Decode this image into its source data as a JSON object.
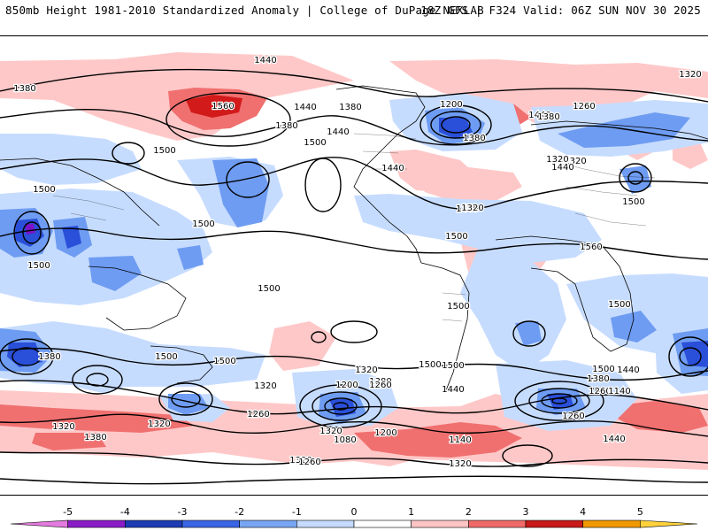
{
  "header": {
    "left": "850mb Height 1981-2010 Standardized Anomaly | College of DuPage NEXLAB",
    "right": "18Z GFS | F324 Valid: 06Z SUN NOV 30 2025"
  },
  "colors": {
    "ocean_bg": "#ffffff",
    "anom_pos1": "#ffc8c8",
    "anom_pos2": "#f07070",
    "anom_pos3": "#d21a1a",
    "anom_pos4": "#a00000",
    "anom_neg1": "#c6dcff",
    "anom_neg2": "#6e9cf2",
    "anom_neg3": "#2a4fd8",
    "anom_neg4": "#7a12c8",
    "contour": "#000000",
    "border": "#000000"
  },
  "contour_labels": [
    "1440",
    "1380",
    "1320",
    "1560",
    "1440",
    "1380",
    "1440",
    "1500",
    "1500",
    "1440",
    "1380",
    "1320",
    "1200",
    "1380",
    "1440",
    "1260",
    "1380",
    "1320",
    "1440",
    "1500",
    "1440",
    "1320",
    "1500",
    "1560",
    "1500",
    "1500",
    "1500",
    "1500",
    "1500",
    "1500",
    "1500",
    "1500",
    "1500",
    "1380",
    "1320",
    "1440",
    "1500",
    "1380",
    "1260",
    "1200",
    "1260",
    "1320",
    "1440",
    "1380",
    "1320",
    "1260",
    "1140",
    "1260",
    "1320",
    "1080",
    "1200",
    "1140",
    "1320",
    "1260",
    "1320",
    "1440",
    "1380",
    "1320",
    "1500"
  ],
  "colorbar": {
    "ticks": [
      "-5",
      "-4",
      "-3",
      "-2",
      "-1",
      "0",
      "1",
      "2",
      "3",
      "4",
      "5"
    ],
    "colors": [
      "#e57be0",
      "#8a1cc8",
      "#1c3bb4",
      "#3a64e6",
      "#78a6f2",
      "#c4dbff",
      "#ffffff",
      "#ffc4c4",
      "#f06a6a",
      "#c81818",
      "#f09a00",
      "#ffd23c"
    ]
  }
}
